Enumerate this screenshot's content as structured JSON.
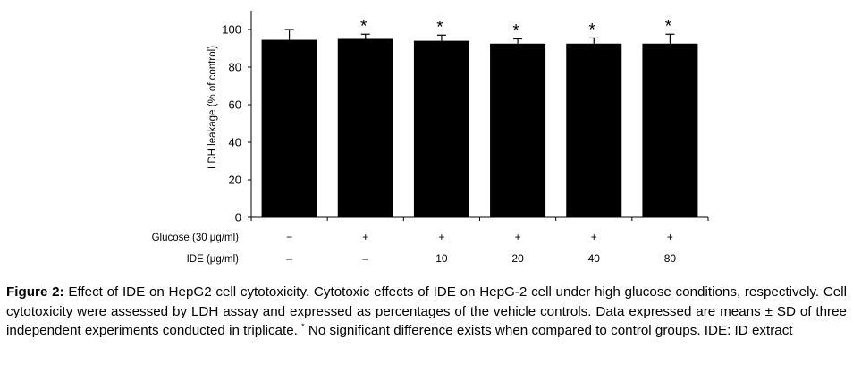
{
  "chart_data": {
    "type": "bar",
    "ylabel": "LDH leakage  (% of control)",
    "ylim": [
      0,
      110
    ],
    "yticks": [
      0,
      20,
      40,
      60,
      80,
      100
    ],
    "values": [
      94.5,
      95,
      94,
      92.5,
      92.5,
      92.5
    ],
    "errors": [
      5.5,
      2.5,
      3,
      2.5,
      3,
      5
    ],
    "significance": [
      "",
      "*",
      "*",
      "*",
      "*",
      "*"
    ],
    "row_labels": [
      {
        "label": "Glucose (30 μg/ml)",
        "values": [
          "−",
          "+",
          "+",
          "+",
          "+",
          "+"
        ]
      },
      {
        "label": "IDE (μg/ml)",
        "values": [
          "–",
          "–",
          "10",
          "20",
          "40",
          "80"
        ]
      }
    ],
    "bar_color": "#000000",
    "grid": false
  },
  "caption": {
    "label": "Figure 2:",
    "text_1": " Effect of IDE on HepG2 cell cytotoxicity. Cytotoxic effects of IDE on HepG-2 cell under high glucose conditions, respectively. Cell cytotoxicity were assessed by LDH assay and expressed as percentages of the vehicle controls. Data expressed are means ± SD of three independent experiments conducted in triplicate. ",
    "superscript": "*",
    "text_2": " No significant difference exists when compared to control groups. IDE: ID extract"
  }
}
